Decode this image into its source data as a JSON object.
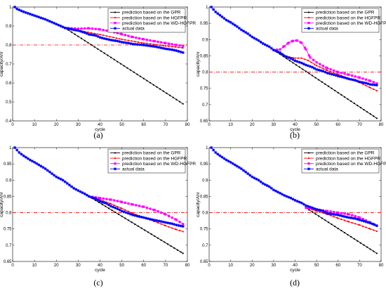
{
  "chart_data": [
    {
      "type": "line",
      "panel_label": "(a)",
      "xlabel": "cycle",
      "ylabel": "capacity/Ahr",
      "xlim": [
        0,
        80
      ],
      "ylim": [
        0.4,
        1.0
      ],
      "xticks": [
        0,
        10,
        20,
        30,
        40,
        50,
        60,
        70,
        80
      ],
      "yticks": [
        0.4,
        0.5,
        0.6,
        0.7,
        0.8,
        0.9,
        1.0
      ],
      "ytick_labels": [
        "0.4",
        "0.5",
        "0.6",
        "0.7",
        "0.8",
        "0.9",
        "1"
      ],
      "grid": false,
      "legend_position": "top-right",
      "threshold": 0.8,
      "series": [
        {
          "name": "prediction based on the GPR",
          "color": "#000000",
          "marker": "dot",
          "x": [
            24,
            78
          ],
          "y": [
            0.89,
            0.49
          ]
        },
        {
          "name": "prediction based on the HGFPR",
          "color": "#ff0000",
          "marker": "dot",
          "x": [
            24,
            30,
            40,
            50,
            60,
            70,
            78
          ],
          "y": [
            0.89,
            0.877,
            0.855,
            0.83,
            0.81,
            0.795,
            0.785
          ]
        },
        {
          "name": "prediction based on the WD-HGFPR",
          "color": "#ff00ff",
          "marker": "square",
          "x": [
            24,
            30,
            35,
            40,
            45,
            50,
            55,
            60,
            65,
            70,
            75,
            78
          ],
          "y": [
            0.89,
            0.886,
            0.888,
            0.882,
            0.871,
            0.857,
            0.842,
            0.83,
            0.82,
            0.81,
            0.8,
            0.795
          ]
        },
        {
          "name": "actual data",
          "color": "#0000ff",
          "marker": "star",
          "x": [
            1,
            2,
            5,
            10,
            15,
            20,
            24,
            28,
            30,
            33,
            35,
            38,
            40,
            42,
            45,
            48,
            50,
            53,
            55,
            58,
            60,
            63,
            65,
            68,
            70,
            73,
            75,
            78
          ],
          "y": [
            1.0,
            0.99,
            0.975,
            0.955,
            0.935,
            0.91,
            0.89,
            0.88,
            0.876,
            0.865,
            0.856,
            0.85,
            0.84,
            0.834,
            0.826,
            0.821,
            0.815,
            0.81,
            0.805,
            0.802,
            0.8,
            0.795,
            0.792,
            0.785,
            0.78,
            0.775,
            0.77,
            0.76
          ]
        }
      ]
    },
    {
      "type": "line",
      "panel_label": "(b)",
      "xlabel": "cycle",
      "ylabel": "capacity/Ahr",
      "xlim": [
        0,
        80
      ],
      "ylim": [
        0.65,
        1.0
      ],
      "xticks": [
        0,
        10,
        20,
        30,
        40,
        50,
        60,
        70,
        80
      ],
      "yticks": [
        0.65,
        0.7,
        0.75,
        0.8,
        0.85,
        0.9,
        0.95,
        1.0
      ],
      "ytick_labels": [
        "0.65",
        "0.7",
        "0.75",
        "0.8",
        "0.85",
        "0.9",
        "0.95",
        "1"
      ],
      "grid": false,
      "legend_position": "top-right",
      "threshold": 0.8,
      "series": [
        {
          "name": "prediction based on the GPR",
          "color": "#000000",
          "marker": "dot",
          "x": [
            30,
            78
          ],
          "y": [
            0.868,
            0.658
          ]
        },
        {
          "name": "prediction based on the HGFPR",
          "color": "#ff0000",
          "marker": "dot",
          "x": [
            30,
            33,
            36,
            40,
            43,
            46,
            50,
            55,
            60,
            65,
            70,
            75,
            78
          ],
          "y": [
            0.868,
            0.86,
            0.848,
            0.843,
            0.843,
            0.836,
            0.82,
            0.805,
            0.793,
            0.78,
            0.768,
            0.752,
            0.743
          ]
        },
        {
          "name": "prediction based on the WD-HGFPR",
          "color": "#ff00ff",
          "marker": "square",
          "x": [
            30,
            33,
            35,
            37,
            39,
            41,
            43,
            45,
            47,
            50,
            55,
            60,
            65,
            70,
            75,
            78
          ],
          "y": [
            0.868,
            0.87,
            0.88,
            0.89,
            0.896,
            0.897,
            0.89,
            0.87,
            0.845,
            0.83,
            0.812,
            0.8,
            0.792,
            0.783,
            0.773,
            0.765
          ]
        },
        {
          "name": "actual data",
          "color": "#0000ff",
          "marker": "star",
          "x": [
            1,
            3,
            5,
            8,
            10,
            13,
            15,
            18,
            20,
            23,
            25,
            28,
            30,
            33,
            35,
            38,
            40,
            43,
            45,
            48,
            50,
            53,
            55,
            58,
            60,
            63,
            65,
            68,
            70,
            73,
            75,
            78
          ],
          "y": [
            1.0,
            0.985,
            0.975,
            0.96,
            0.953,
            0.94,
            0.93,
            0.918,
            0.908,
            0.897,
            0.888,
            0.878,
            0.868,
            0.86,
            0.85,
            0.842,
            0.835,
            0.828,
            0.822,
            0.815,
            0.808,
            0.803,
            0.797,
            0.792,
            0.788,
            0.783,
            0.779,
            0.775,
            0.77,
            0.766,
            0.762,
            0.76
          ]
        }
      ]
    },
    {
      "type": "line",
      "panel_label": "(c)",
      "xlabel": "cycle",
      "ylabel": "capacity/Ahr",
      "xlim": [
        0,
        80
      ],
      "ylim": [
        0.65,
        1.0
      ],
      "xticks": [
        0,
        10,
        20,
        30,
        40,
        50,
        60,
        70,
        80
      ],
      "yticks": [
        0.65,
        0.7,
        0.75,
        0.8,
        0.85,
        0.9,
        0.95,
        1.0
      ],
      "ytick_labels": [
        "0.65",
        "0.7",
        "0.75",
        "0.8",
        "0.85",
        "0.9",
        "0.95",
        "1"
      ],
      "grid": false,
      "legend_position": "top-right",
      "threshold": 0.8,
      "series": [
        {
          "name": "prediction based on the GPR",
          "color": "#000000",
          "marker": "dot",
          "x": [
            35,
            78
          ],
          "y": [
            0.85,
            0.675
          ]
        },
        {
          "name": "prediction based on the HGFPR",
          "color": "#ff0000",
          "marker": "dot",
          "x": [
            35,
            40,
            45,
            50,
            55,
            60,
            65,
            70,
            75,
            78
          ],
          "y": [
            0.85,
            0.84,
            0.827,
            0.813,
            0.798,
            0.785,
            0.773,
            0.76,
            0.748,
            0.742
          ]
        },
        {
          "name": "prediction based on the WD-HGFPR",
          "color": "#ff00ff",
          "marker": "square",
          "x": [
            35,
            40,
            45,
            50,
            55,
            60,
            65,
            70,
            75,
            78
          ],
          "y": [
            0.85,
            0.845,
            0.84,
            0.833,
            0.825,
            0.818,
            0.808,
            0.795,
            0.778,
            0.765
          ]
        },
        {
          "name": "actual data",
          "color": "#0000ff",
          "marker": "star",
          "x": [
            1,
            3,
            5,
            8,
            10,
            13,
            15,
            18,
            20,
            23,
            25,
            28,
            30,
            33,
            35,
            38,
            40,
            43,
            45,
            48,
            50,
            53,
            55,
            58,
            60,
            63,
            65,
            68,
            70,
            73,
            75,
            78
          ],
          "y": [
            1.0,
            0.985,
            0.975,
            0.962,
            0.955,
            0.943,
            0.935,
            0.92,
            0.91,
            0.9,
            0.89,
            0.875,
            0.868,
            0.858,
            0.85,
            0.843,
            0.835,
            0.828,
            0.82,
            0.812,
            0.805,
            0.798,
            0.793,
            0.788,
            0.785,
            0.78,
            0.777,
            0.773,
            0.77,
            0.766,
            0.762,
            0.758
          ]
        }
      ]
    },
    {
      "type": "line",
      "panel_label": "(d)",
      "xlabel": "cycle",
      "ylabel": "capacity/Ahr",
      "xlim": [
        0,
        80
      ],
      "ylim": [
        0.65,
        1.0
      ],
      "xticks": [
        0,
        10,
        20,
        30,
        40,
        50,
        60,
        70,
        80
      ],
      "yticks": [
        0.65,
        0.7,
        0.75,
        0.8,
        0.85,
        0.9,
        0.95,
        1.0
      ],
      "ytick_labels": [
        "0.65",
        "0.7",
        "0.75",
        "0.8",
        "0.85",
        "0.9",
        "0.95",
        "1"
      ],
      "grid": false,
      "legend_position": "top-right",
      "threshold": 0.8,
      "series": [
        {
          "name": "prediction based on the GPR",
          "color": "#000000",
          "marker": "dot",
          "x": [
            45,
            78
          ],
          "y": [
            0.815,
            0.675
          ]
        },
        {
          "name": "prediction based on the HGFPR",
          "color": "#ff0000",
          "marker": "dot",
          "x": [
            45,
            50,
            55,
            60,
            65,
            70,
            75,
            78
          ],
          "y": [
            0.815,
            0.805,
            0.795,
            0.783,
            0.772,
            0.762,
            0.75,
            0.743
          ]
        },
        {
          "name": "prediction based on the WD-HGFPR",
          "color": "#ff00ff",
          "marker": "square",
          "x": [
            45,
            50,
            55,
            60,
            65,
            70,
            75,
            78
          ],
          "y": [
            0.815,
            0.81,
            0.805,
            0.8,
            0.795,
            0.785,
            0.77,
            0.76
          ]
        },
        {
          "name": "actual data",
          "color": "#0000ff",
          "marker": "star",
          "x": [
            1,
            3,
            5,
            8,
            10,
            13,
            15,
            18,
            20,
            23,
            25,
            28,
            30,
            33,
            35,
            38,
            40,
            43,
            45,
            48,
            50,
            53,
            55,
            58,
            60,
            63,
            65,
            68,
            70,
            73,
            75,
            78
          ],
          "y": [
            1.0,
            0.985,
            0.975,
            0.962,
            0.955,
            0.943,
            0.935,
            0.92,
            0.91,
            0.9,
            0.89,
            0.88,
            0.87,
            0.86,
            0.853,
            0.845,
            0.838,
            0.83,
            0.822,
            0.815,
            0.81,
            0.805,
            0.798,
            0.795,
            0.793,
            0.788,
            0.785,
            0.782,
            0.778,
            0.772,
            0.768,
            0.76
          ]
        }
      ]
    }
  ]
}
